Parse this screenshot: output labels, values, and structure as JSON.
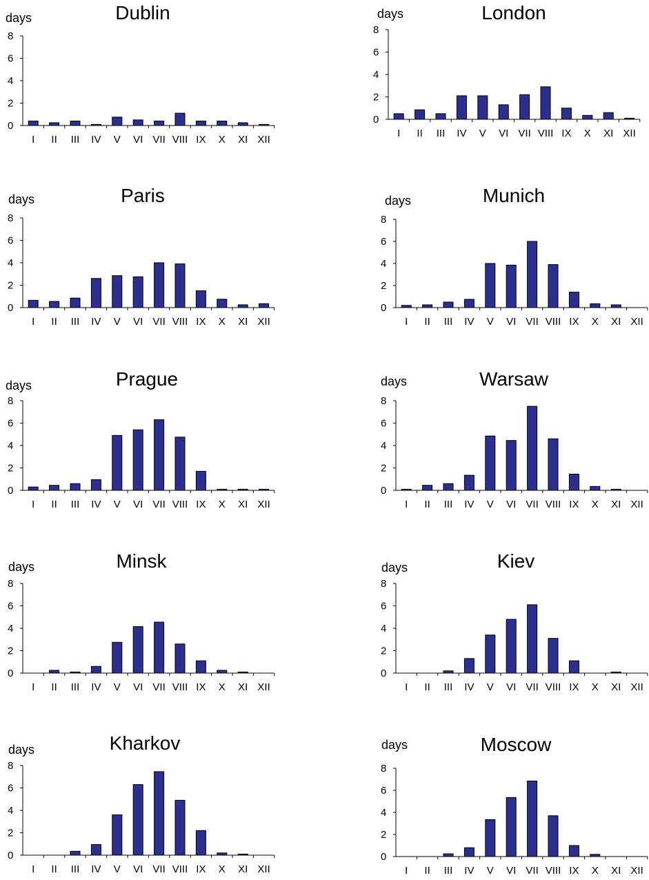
{
  "figure": {
    "bar_color": "#2b2f8f",
    "bar_stroke": "#000000",
    "axis_color": "#000000"
  },
  "chart_data": [
    {
      "type": "bar",
      "title": "Dublin",
      "ylabel": "days",
      "ylim": [
        0,
        8
      ],
      "yticks": [
        0,
        2,
        4,
        6,
        8
      ],
      "categories": [
        "I",
        "II",
        "III",
        "IV",
        "V",
        "VI",
        "VII",
        "VIII",
        "IX",
        "X",
        "XI",
        "XII"
      ],
      "values": [
        0.4,
        0.25,
        0.4,
        0.1,
        0.75,
        0.5,
        0.4,
        1.1,
        0.4,
        0.4,
        0.25,
        0.1
      ]
    },
    {
      "type": "bar",
      "title": "London",
      "ylabel": "days",
      "ylim": [
        0,
        8
      ],
      "yticks": [
        0,
        2,
        4,
        6,
        8
      ],
      "categories": [
        "I",
        "II",
        "III",
        "IV",
        "V",
        "VI",
        "VII",
        "VIII",
        "IX",
        "X",
        "XI",
        "XII"
      ],
      "values": [
        0.5,
        0.85,
        0.5,
        2.1,
        2.1,
        1.3,
        2.2,
        2.9,
        1.0,
        0.35,
        0.6,
        0.1
      ]
    },
    {
      "type": "bar",
      "title": "Paris",
      "ylabel": "days",
      "ylim": [
        0,
        8
      ],
      "yticks": [
        0,
        2,
        4,
        6,
        8
      ],
      "categories": [
        "I",
        "II",
        "III",
        "IV",
        "V",
        "VI",
        "VII",
        "VIII",
        "IX",
        "X",
        "XI",
        "XII"
      ],
      "values": [
        0.65,
        0.55,
        0.85,
        2.6,
        2.85,
        2.75,
        4.0,
        3.9,
        1.5,
        0.75,
        0.25,
        0.35
      ]
    },
    {
      "type": "bar",
      "title": "Munich",
      "ylabel": "days",
      "ylim": [
        0,
        8
      ],
      "yticks": [
        0,
        2,
        4,
        6,
        8
      ],
      "categories": [
        "I",
        "II",
        "III",
        "IV",
        "V",
        "VI",
        "VII",
        "VIII",
        "IX",
        "X",
        "XI",
        "XII"
      ],
      "values": [
        0.2,
        0.25,
        0.5,
        0.75,
        4.0,
        3.85,
        6.0,
        3.9,
        1.4,
        0.35,
        0.25,
        0
      ]
    },
    {
      "type": "bar",
      "title": "Prague",
      "ylabel": "days",
      "ylim": [
        0,
        8
      ],
      "yticks": [
        0,
        2,
        4,
        6,
        8
      ],
      "categories": [
        "I",
        "II",
        "III",
        "IV",
        "V",
        "VI",
        "VII",
        "VIII",
        "IX",
        "X",
        "XI",
        "XII"
      ],
      "values": [
        0.3,
        0.45,
        0.6,
        0.95,
        4.9,
        5.4,
        6.3,
        4.75,
        1.7,
        0.1,
        0.1,
        0.1
      ]
    },
    {
      "type": "bar",
      "title": "Warsaw",
      "ylabel": "days",
      "ylim": [
        0,
        8
      ],
      "yticks": [
        0,
        2,
        4,
        6,
        8
      ],
      "categories": [
        "I",
        "II",
        "III",
        "IV",
        "V",
        "VI",
        "VII",
        "VIII",
        "IX",
        "X",
        "XI",
        "XII"
      ],
      "values": [
        0.1,
        0.45,
        0.6,
        1.35,
        4.85,
        4.45,
        7.5,
        4.6,
        1.45,
        0.35,
        0.1,
        0
      ]
    },
    {
      "type": "bar",
      "title": "Minsk",
      "ylabel": "days",
      "ylim": [
        0,
        8
      ],
      "yticks": [
        0,
        2,
        4,
        6,
        8
      ],
      "categories": [
        "I",
        "II",
        "III",
        "IV",
        "V",
        "VI",
        "VII",
        "VIII",
        "IX",
        "X",
        "XI",
        "XII"
      ],
      "values": [
        0,
        0.25,
        0.1,
        0.6,
        2.75,
        4.15,
        4.55,
        2.6,
        1.1,
        0.25,
        0.1,
        0
      ]
    },
    {
      "type": "bar",
      "title": "Kiev",
      "ylabel": "days",
      "ylim": [
        0,
        8
      ],
      "yticks": [
        0,
        2,
        4,
        6,
        8
      ],
      "categories": [
        "I",
        "II",
        "III",
        "IV",
        "V",
        "VI",
        "VII",
        "VIII",
        "IX",
        "X",
        "XI",
        "XII"
      ],
      "values": [
        0,
        0,
        0.2,
        1.3,
        3.4,
        4.8,
        6.1,
        3.1,
        1.1,
        0,
        0.1,
        0
      ]
    },
    {
      "type": "bar",
      "title": "Kharkov",
      "ylabel": "days",
      "ylim": [
        0,
        8
      ],
      "yticks": [
        0,
        2,
        4,
        6,
        8
      ],
      "categories": [
        "I",
        "II",
        "III",
        "IV",
        "V",
        "VI",
        "VII",
        "VIII",
        "IX",
        "X",
        "XI",
        "XII"
      ],
      "values": [
        0,
        0,
        0.35,
        0.95,
        3.6,
        6.3,
        7.45,
        4.9,
        2.2,
        0.2,
        0.1,
        0
      ]
    },
    {
      "type": "bar",
      "title": "Moscow",
      "ylabel": "days",
      "ylim": [
        0,
        8
      ],
      "yticks": [
        0,
        2,
        4,
        6,
        8
      ],
      "categories": [
        "I",
        "II",
        "III",
        "IV",
        "V",
        "VI",
        "VII",
        "VIII",
        "IX",
        "X",
        "XI",
        "XII"
      ],
      "values": [
        0,
        0,
        0.25,
        0.8,
        3.35,
        5.35,
        6.85,
        3.7,
        1.0,
        0.2,
        0,
        0
      ]
    }
  ]
}
